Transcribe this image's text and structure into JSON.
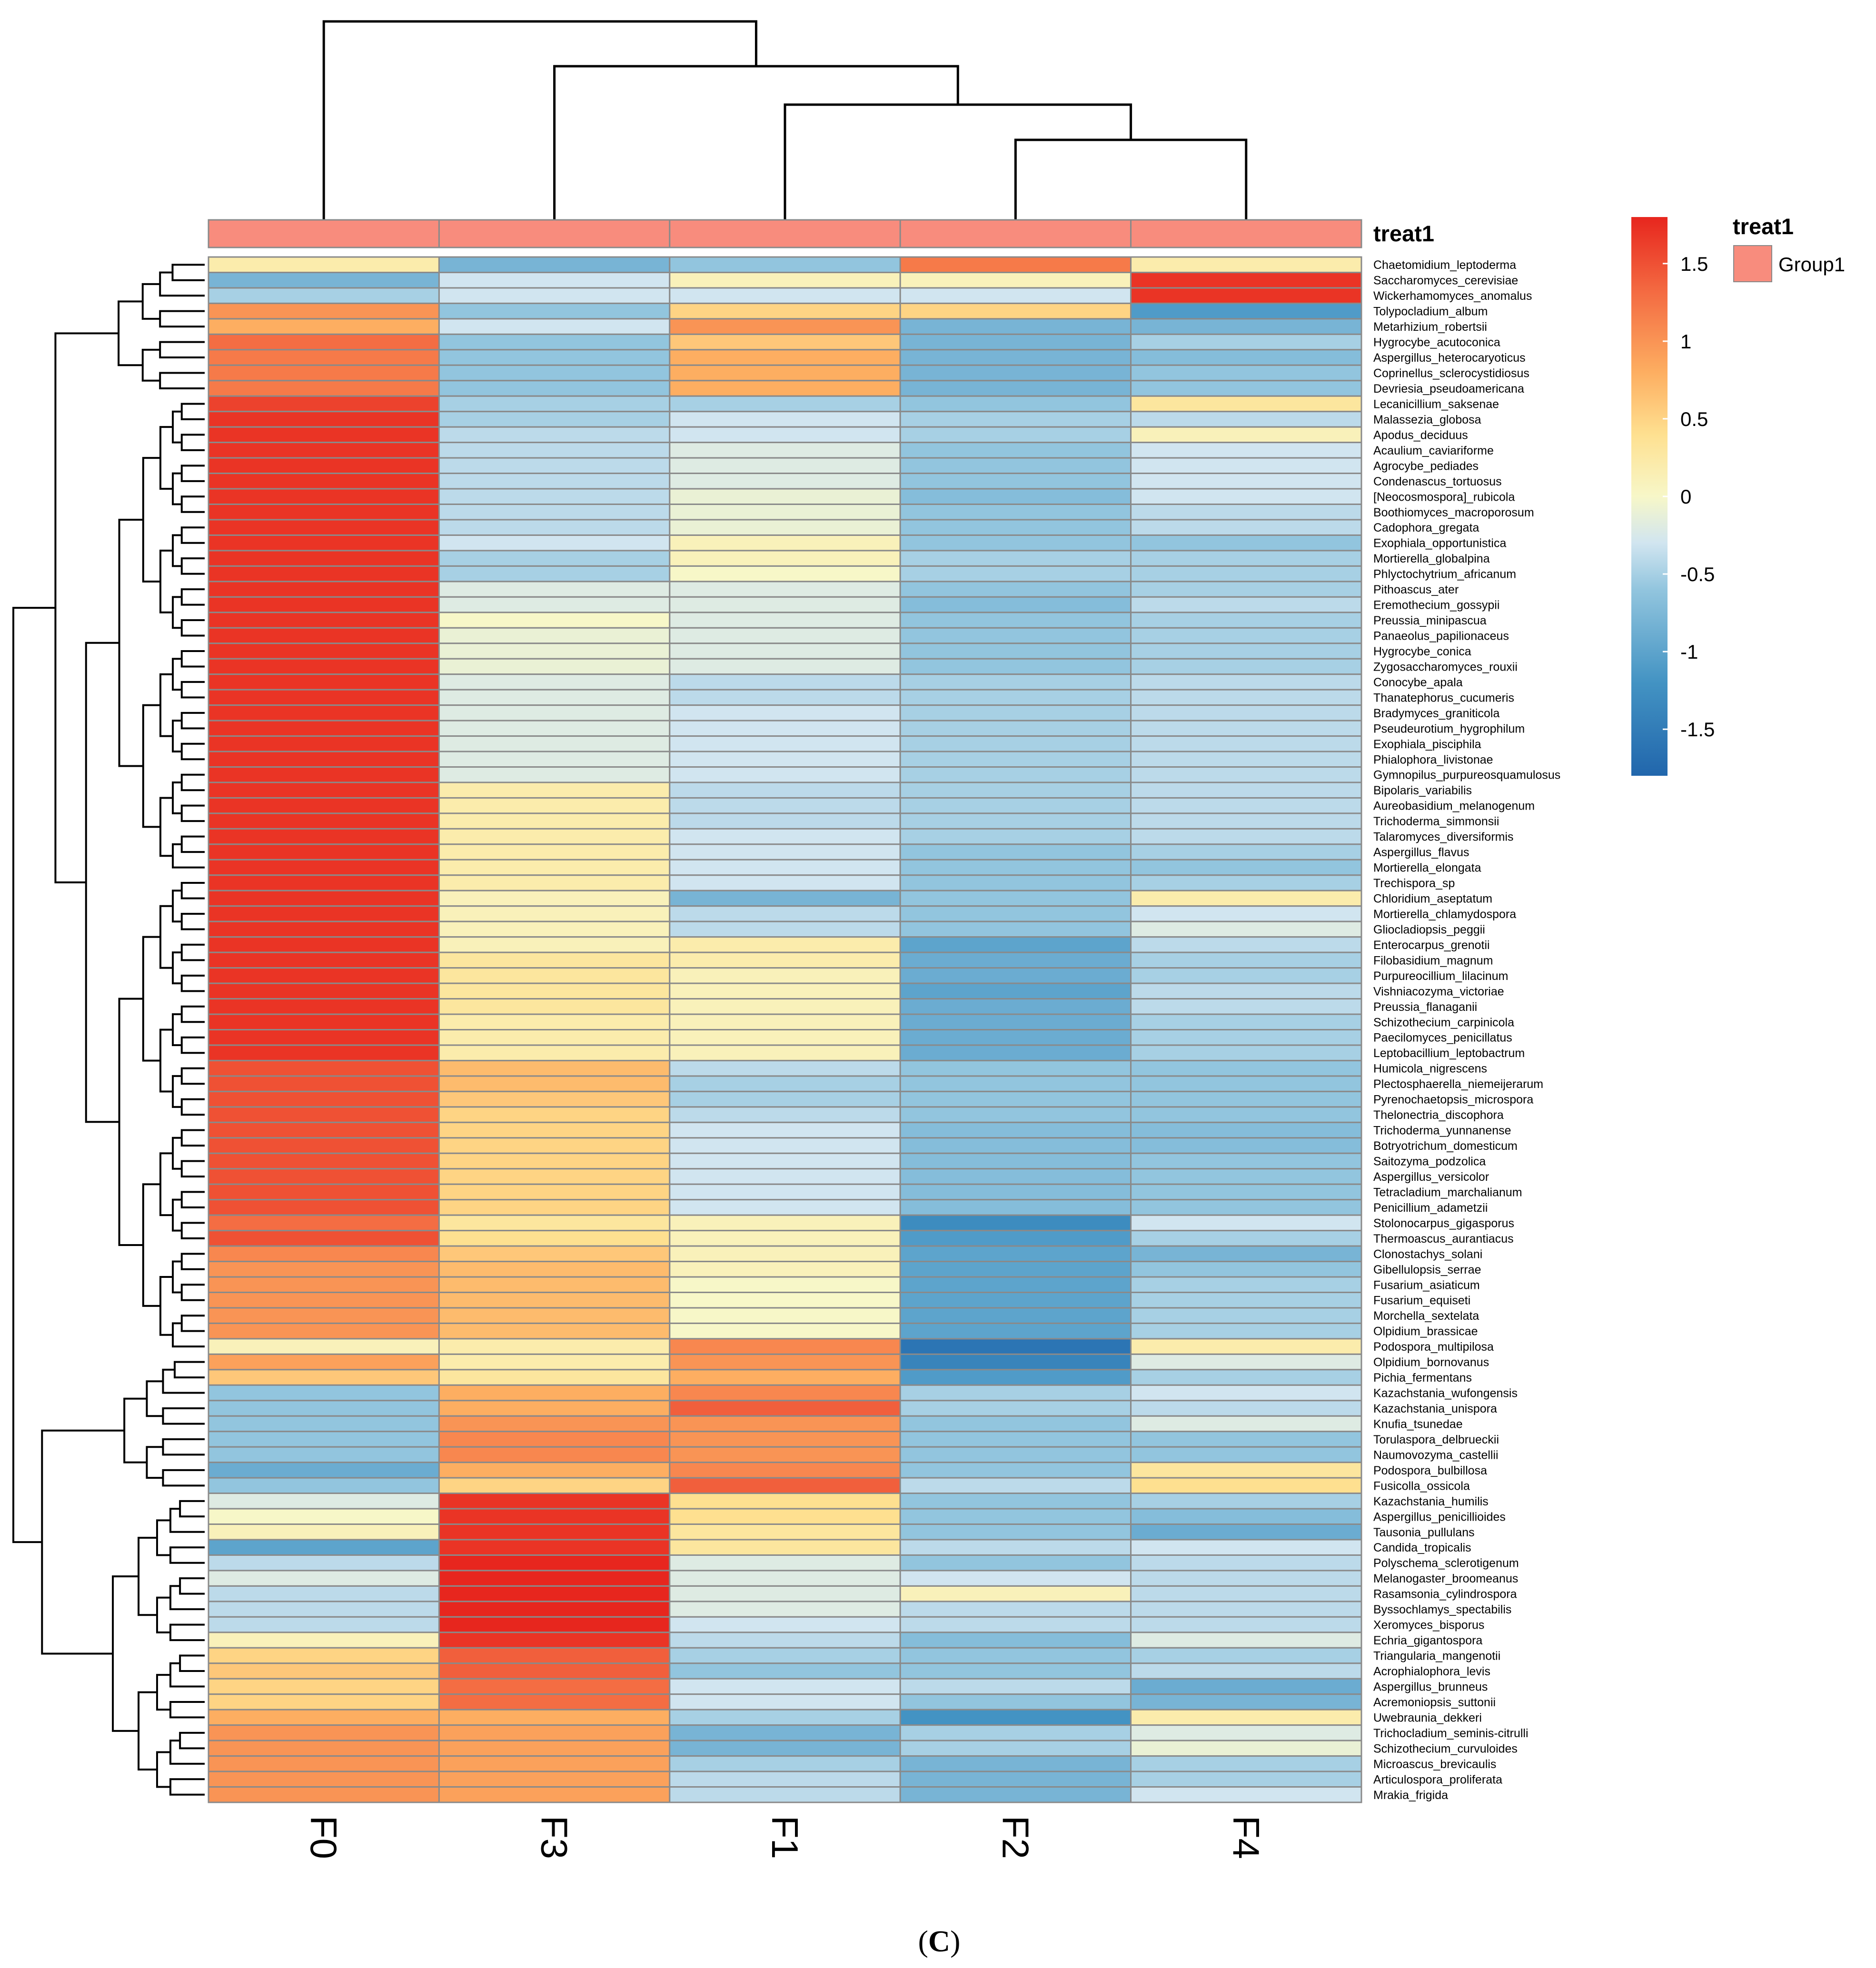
{
  "chart_data": {
    "type": "heatmap",
    "columns": [
      "F0",
      "F3",
      "F1",
      "F2",
      "F4"
    ],
    "annotation": {
      "title": "treat1",
      "values": [
        "Group1",
        "Group1",
        "Group1",
        "Group1",
        "Group1"
      ],
      "legend_label": "Group1",
      "color": "#F88C7D"
    },
    "color_scale": {
      "min": -1.8,
      "max": 1.8,
      "ticks": [
        "1.5",
        "1",
        "0.5",
        "0",
        "-0.5",
        "-1",
        "-1.5"
      ],
      "tick_values": [
        1.5,
        1,
        0.5,
        0,
        -0.5,
        -1,
        -1.5
      ],
      "stops": [
        {
          "v": -1.8,
          "c": "#2166AC"
        },
        {
          "v": -1.2,
          "c": "#4393C3"
        },
        {
          "v": -0.6,
          "c": "#92C5DE"
        },
        {
          "v": -0.3,
          "c": "#D1E5F0"
        },
        {
          "v": 0.0,
          "c": "#F7F7C8"
        },
        {
          "v": 0.4,
          "c": "#FEE090"
        },
        {
          "v": 0.8,
          "c": "#FDAE61"
        },
        {
          "v": 1.3,
          "c": "#F46D43"
        },
        {
          "v": 1.8,
          "c": "#E7261E"
        }
      ]
    },
    "col_dendrogram": [
      {
        "a": 2,
        "b": 3,
        "h": 0.25
      },
      {
        "a": 1,
        "b": 0,
        "h": 0.4
      },
      {
        "a": 1,
        "b": 0,
        "h": 0.62
      }
    ],
    "rows": [
      {
        "name": "Chaetomidium_leptoderma",
        "v": [
          0.2,
          -0.8,
          -0.6,
          1.2,
          0.2
        ]
      },
      {
        "name": "Saccharomyces_cerevisiae",
        "v": [
          -0.8,
          -0.3,
          0.1,
          0.1,
          1.7
        ]
      },
      {
        "name": "Wickerhamomyces_anomalus",
        "v": [
          -0.5,
          -0.3,
          -0.3,
          -0.3,
          1.7
        ]
      },
      {
        "name": "Tolypocladium_album",
        "v": [
          1.0,
          -0.6,
          0.5,
          0.5,
          -1.1
        ]
      },
      {
        "name": "Metarhizium_robertsii",
        "v": [
          0.8,
          -0.3,
          1.0,
          -0.8,
          -0.8
        ]
      },
      {
        "name": "Hygrocybe_acutoconica",
        "v": [
          1.3,
          -0.6,
          0.6,
          -0.8,
          -0.5
        ]
      },
      {
        "name": "Aspergillus_heterocaryoticus",
        "v": [
          1.2,
          -0.6,
          0.8,
          -0.8,
          -0.7
        ]
      },
      {
        "name": "Coprinellus_sclerocystidiosus",
        "v": [
          1.2,
          -0.6,
          0.8,
          -0.8,
          -0.6
        ]
      },
      {
        "name": "Devriesia_pseudoamericana",
        "v": [
          1.2,
          -0.6,
          0.8,
          -0.8,
          -0.6
        ]
      },
      {
        "name": "Lecanicillium_saksenae",
        "v": [
          1.6,
          -0.5,
          -0.5,
          -0.6,
          0.3
        ]
      },
      {
        "name": "Malassezia_globosa",
        "v": [
          1.7,
          -0.5,
          -0.3,
          -0.5,
          -0.4
        ]
      },
      {
        "name": "Apodus_deciduus",
        "v": [
          1.7,
          -0.4,
          -0.3,
          -0.5,
          0.1
        ]
      },
      {
        "name": "Acaulium_caviariforme",
        "v": [
          1.7,
          -0.4,
          -0.2,
          -0.6,
          -0.3
        ]
      },
      {
        "name": "Agrocybe_pediades",
        "v": [
          1.7,
          -0.4,
          -0.2,
          -0.6,
          -0.3
        ]
      },
      {
        "name": "Condenascus_tortuosus",
        "v": [
          1.7,
          -0.4,
          -0.2,
          -0.6,
          -0.3
        ]
      },
      {
        "name": "[Neocosmospora]_rubicola",
        "v": [
          1.7,
          -0.4,
          -0.1,
          -0.7,
          -0.3
        ]
      },
      {
        "name": "Boothiomyces_macroporosum",
        "v": [
          1.7,
          -0.4,
          -0.1,
          -0.6,
          -0.4
        ]
      },
      {
        "name": "Cadophora_gregata",
        "v": [
          1.7,
          -0.4,
          -0.1,
          -0.6,
          -0.4
        ]
      },
      {
        "name": "Exophiala_opportunistica",
        "v": [
          1.7,
          -0.3,
          0.1,
          -0.6,
          -0.6
        ]
      },
      {
        "name": "Mortierella_globalpina",
        "v": [
          1.7,
          -0.5,
          0.1,
          -0.5,
          -0.5
        ]
      },
      {
        "name": "Phlyctochytrium_africanum",
        "v": [
          1.7,
          -0.5,
          0.0,
          -0.5,
          -0.5
        ]
      },
      {
        "name": "Pithoascus_ater",
        "v": [
          1.7,
          -0.2,
          -0.2,
          -0.6,
          -0.5
        ]
      },
      {
        "name": "Eremothecium_gossypii",
        "v": [
          1.7,
          -0.2,
          -0.2,
          -0.7,
          -0.4
        ]
      },
      {
        "name": "Preussia_minipascua",
        "v": [
          1.7,
          0.0,
          -0.2,
          -0.6,
          -0.5
        ]
      },
      {
        "name": "Panaeolus_papilionaceus",
        "v": [
          1.7,
          -0.1,
          -0.2,
          -0.6,
          -0.5
        ]
      },
      {
        "name": "Hygrocybe_conica",
        "v": [
          1.7,
          -0.1,
          -0.2,
          -0.6,
          -0.5
        ]
      },
      {
        "name": "Zygosaccharomyces_rouxii",
        "v": [
          1.7,
          -0.1,
          -0.2,
          -0.6,
          -0.5
        ]
      },
      {
        "name": "Conocybe_apala",
        "v": [
          1.7,
          -0.2,
          -0.4,
          -0.5,
          -0.4
        ]
      },
      {
        "name": "Thanatephorus_cucumeris",
        "v": [
          1.7,
          -0.2,
          -0.4,
          -0.5,
          -0.4
        ]
      },
      {
        "name": "Bradymyces_graniticola",
        "v": [
          1.7,
          -0.2,
          -0.3,
          -0.5,
          -0.4
        ]
      },
      {
        "name": "Pseudeurotium_hygrophilum",
        "v": [
          1.7,
          -0.2,
          -0.3,
          -0.5,
          -0.4
        ]
      },
      {
        "name": "Exophiala_pisciphila",
        "v": [
          1.7,
          -0.2,
          -0.3,
          -0.5,
          -0.4
        ]
      },
      {
        "name": "Phialophora_livistonae",
        "v": [
          1.7,
          -0.2,
          -0.3,
          -0.5,
          -0.4
        ]
      },
      {
        "name": "Gymnopilus_purpureosquamulosus",
        "v": [
          1.7,
          -0.2,
          -0.3,
          -0.5,
          -0.4
        ]
      },
      {
        "name": "Bipolaris_variabilis",
        "v": [
          1.7,
          0.2,
          -0.4,
          -0.5,
          -0.4
        ]
      },
      {
        "name": "Aureobasidium_melanogenum",
        "v": [
          1.7,
          0.2,
          -0.4,
          -0.5,
          -0.4
        ]
      },
      {
        "name": "Trichoderma_simmonsii",
        "v": [
          1.7,
          0.2,
          -0.4,
          -0.5,
          -0.4
        ]
      },
      {
        "name": "Talaromyces_diversiformis",
        "v": [
          1.7,
          0.2,
          -0.3,
          -0.5,
          -0.4
        ]
      },
      {
        "name": "Aspergillus_flavus",
        "v": [
          1.7,
          0.2,
          -0.3,
          -0.6,
          -0.5
        ]
      },
      {
        "name": "Mortierella_elongata",
        "v": [
          1.7,
          0.2,
          -0.3,
          -0.6,
          -0.6
        ]
      },
      {
        "name": "Trechispora_sp",
        "v": [
          1.7,
          0.2,
          -0.3,
          -0.6,
          -0.5
        ]
      },
      {
        "name": "Chloridium_aseptatum",
        "v": [
          1.7,
          0.1,
          -0.8,
          -0.6,
          0.2
        ]
      },
      {
        "name": "Mortierella_chlamydospora",
        "v": [
          1.7,
          0.1,
          -0.4,
          -0.6,
          -0.3
        ]
      },
      {
        "name": "Gliocladiopsis_peggii",
        "v": [
          1.7,
          0.1,
          -0.4,
          -0.6,
          -0.2
        ]
      },
      {
        "name": "Enterocarpus_grenotii",
        "v": [
          1.7,
          0.1,
          0.2,
          -1.0,
          -0.4
        ]
      },
      {
        "name": "Filobasidium_magnum",
        "v": [
          1.7,
          0.3,
          0.2,
          -0.9,
          -0.5
        ]
      },
      {
        "name": "Purpureocillium_lilacinum",
        "v": [
          1.7,
          0.3,
          0.1,
          -0.9,
          -0.5
        ]
      },
      {
        "name": "Vishniacozyma_victoriae",
        "v": [
          1.7,
          0.3,
          0.1,
          -1.0,
          -0.4
        ]
      },
      {
        "name": "Preussia_flanaganii",
        "v": [
          1.7,
          0.3,
          0.1,
          -0.9,
          -0.4
        ]
      },
      {
        "name": "Schizothecium_carpinicola",
        "v": [
          1.7,
          0.2,
          0.1,
          -0.9,
          -0.5
        ]
      },
      {
        "name": "Paecilomyces_penicillatus",
        "v": [
          1.7,
          0.2,
          0.1,
          -0.9,
          -0.5
        ]
      },
      {
        "name": "Leptobacillium_leptobactrum",
        "v": [
          1.7,
          0.2,
          0.1,
          -0.9,
          -0.5
        ]
      },
      {
        "name": "Humicola_nigrescens",
        "v": [
          1.5,
          0.7,
          -0.4,
          -0.6,
          -0.6
        ]
      },
      {
        "name": "Plectosphaerella_niemeijerarum",
        "v": [
          1.5,
          0.7,
          -0.5,
          -0.6,
          -0.6
        ]
      },
      {
        "name": "Pyrenochaetopsis_microspora",
        "v": [
          1.5,
          0.6,
          -0.5,
          -0.6,
          -0.6
        ]
      },
      {
        "name": "Thelonectria_discophora",
        "v": [
          1.5,
          0.5,
          -0.4,
          -0.6,
          -0.6
        ]
      },
      {
        "name": "Trichoderma_yunnanense",
        "v": [
          1.5,
          0.5,
          -0.3,
          -0.7,
          -0.7
        ]
      },
      {
        "name": "Botryotrichum_domesticum",
        "v": [
          1.5,
          0.5,
          -0.3,
          -0.7,
          -0.7
        ]
      },
      {
        "name": "Saitozyma_podzolica",
        "v": [
          1.5,
          0.5,
          -0.3,
          -0.7,
          -0.6
        ]
      },
      {
        "name": "Aspergillus_versicolor",
        "v": [
          1.5,
          0.5,
          -0.3,
          -0.7,
          -0.6
        ]
      },
      {
        "name": "Tetracladium_marchalianum",
        "v": [
          1.5,
          0.5,
          -0.3,
          -0.7,
          -0.6
        ]
      },
      {
        "name": "Penicillium_adametzii",
        "v": [
          1.5,
          0.5,
          -0.3,
          -0.7,
          -0.6
        ]
      },
      {
        "name": "Stolonocarpus_gigasporus",
        "v": [
          1.3,
          0.3,
          0.1,
          -1.3,
          -0.3
        ]
      },
      {
        "name": "Thermoascus_aurantiacus",
        "v": [
          1.5,
          0.4,
          0.1,
          -1.1,
          -0.5
        ]
      },
      {
        "name": "Clonostachys_solani",
        "v": [
          1.1,
          0.6,
          0.1,
          -1.0,
          -0.8
        ]
      },
      {
        "name": "Gibellulopsis_serrae",
        "v": [
          1.0,
          0.7,
          0.1,
          -1.0,
          -0.6
        ]
      },
      {
        "name": "Fusarium_asiaticum",
        "v": [
          1.0,
          0.7,
          0.0,
          -1.0,
          -0.5
        ]
      },
      {
        "name": "Fusarium_equiseti",
        "v": [
          1.0,
          0.7,
          0.0,
          -1.0,
          -0.5
        ]
      },
      {
        "name": "Morchella_sextelata",
        "v": [
          1.0,
          0.7,
          0.0,
          -1.0,
          -0.5
        ]
      },
      {
        "name": "Olpidium_brassicae",
        "v": [
          1.0,
          0.7,
          0.0,
          -1.0,
          -0.5
        ]
      },
      {
        "name": "Podospora_multipilosa",
        "v": [
          0.1,
          0.2,
          1.1,
          -1.6,
          0.2
        ]
      },
      {
        "name": "Olpidium_bornovanus",
        "v": [
          0.9,
          0.2,
          1.0,
          -1.4,
          -0.2
        ]
      },
      {
        "name": "Pichia_fermentans",
        "v": [
          0.6,
          0.3,
          0.8,
          -1.1,
          -0.5
        ]
      },
      {
        "name": "Kazachstania_wufongensis",
        "v": [
          -0.6,
          0.8,
          1.1,
          -0.5,
          -0.3
        ]
      },
      {
        "name": "Kazachstania_unispora",
        "v": [
          -0.6,
          0.8,
          1.4,
          -0.5,
          -0.4
        ]
      },
      {
        "name": "Knufia_tsunedae",
        "v": [
          -0.6,
          1.0,
          1.0,
          -0.6,
          -0.2
        ]
      },
      {
        "name": "Torulaspora_delbrueckii",
        "v": [
          -0.6,
          1.1,
          1.0,
          -0.6,
          -0.6
        ]
      },
      {
        "name": "Naumovozyma_castellii",
        "v": [
          -0.6,
          1.1,
          1.0,
          -0.6,
          -0.6
        ]
      },
      {
        "name": "Podospora_bulbillosa",
        "v": [
          -0.9,
          0.8,
          1.1,
          -0.6,
          0.3
        ]
      },
      {
        "name": "Fusicolla_ossicola",
        "v": [
          -0.6,
          0.5,
          1.4,
          -0.4,
          0.4
        ]
      },
      {
        "name": "Kazachstania_humilis",
        "v": [
          -0.2,
          1.7,
          0.4,
          -0.6,
          -0.5
        ]
      },
      {
        "name": "Aspergillus_penicillioides",
        "v": [
          0.0,
          1.7,
          0.4,
          -0.6,
          -0.7
        ]
      },
      {
        "name": "Tausonia_pullulans",
        "v": [
          0.1,
          1.7,
          0.3,
          -0.6,
          -0.9
        ]
      },
      {
        "name": "Candida_tropicalis",
        "v": [
          -1.0,
          1.7,
          0.3,
          -0.4,
          -0.3
        ]
      },
      {
        "name": "Polyschema_sclerotigenum",
        "v": [
          -0.4,
          1.8,
          -0.2,
          -0.6,
          -0.4
        ]
      },
      {
        "name": "Melanogaster_broomeanus",
        "v": [
          -0.2,
          1.8,
          -0.2,
          -0.3,
          -0.4
        ]
      },
      {
        "name": "Rasamsonia_cylindrospora",
        "v": [
          -0.4,
          1.8,
          -0.2,
          0.1,
          -0.4
        ]
      },
      {
        "name": "Byssochlamys_spectabilis",
        "v": [
          -0.4,
          1.8,
          -0.2,
          -0.4,
          -0.4
        ]
      },
      {
        "name": "Xeromyces_bisporus",
        "v": [
          -0.4,
          1.8,
          -0.3,
          -0.4,
          -0.4
        ]
      },
      {
        "name": "Echria_gigantospora",
        "v": [
          0.1,
          1.7,
          -0.4,
          -0.7,
          -0.2
        ]
      },
      {
        "name": "Triangularia_mangenotii",
        "v": [
          0.5,
          1.4,
          -0.5,
          -0.6,
          -0.5
        ]
      },
      {
        "name": "Acrophialophora_levis",
        "v": [
          0.6,
          1.4,
          -0.6,
          -0.6,
          -0.4
        ]
      },
      {
        "name": "Aspergillus_brunneus",
        "v": [
          0.5,
          1.3,
          -0.3,
          -0.4,
          -0.9
        ]
      },
      {
        "name": "Acremoniopsis_suttonii",
        "v": [
          0.5,
          1.3,
          -0.3,
          -0.6,
          -0.8
        ]
      },
      {
        "name": "Uwebraunia_dekkeri",
        "v": [
          0.8,
          0.8,
          -0.5,
          -1.2,
          0.2
        ]
      },
      {
        "name": "Trichocladium_seminis-citrulli",
        "v": [
          1.0,
          0.9,
          -0.8,
          -0.5,
          -0.2
        ]
      },
      {
        "name": "Schizothecium_curvuloides",
        "v": [
          1.0,
          0.9,
          -0.8,
          -0.5,
          -0.1
        ]
      },
      {
        "name": "Microascus_brevicaulis",
        "v": [
          1.0,
          0.9,
          -0.5,
          -0.8,
          -0.5
        ]
      },
      {
        "name": "Articulospora_proliferata",
        "v": [
          1.0,
          0.9,
          -0.4,
          -0.8,
          -0.5
        ]
      },
      {
        "name": "Mrakia_frigida",
        "v": [
          1.0,
          0.9,
          -0.4,
          -0.8,
          -0.3
        ]
      }
    ]
  },
  "caption": {
    "open": "(",
    "letter": "C",
    "close": ")"
  }
}
